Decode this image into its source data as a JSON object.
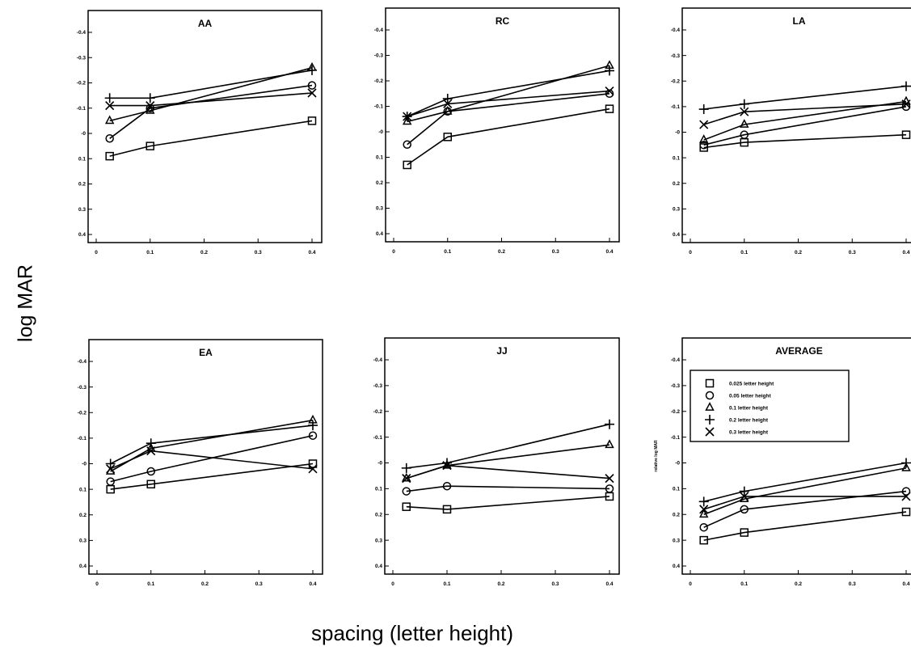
{
  "figure": {
    "ylabel": "log MAR",
    "xlabel": "spacing (letter height)"
  },
  "legend_items": [
    {
      "label": "0.025 letter height",
      "marker": "square"
    },
    {
      "label": "0.05 letter height",
      "marker": "circle"
    },
    {
      "label": "0.1 letter height",
      "marker": "triangle"
    },
    {
      "label": "0.2 letter height",
      "marker": "plus"
    },
    {
      "label": "0.3 letter height",
      "marker": "cross"
    }
  ],
  "chart_data": [
    {
      "type": "line",
      "title": "AA",
      "xlim": [
        0,
        0.4
      ],
      "ylim": [
        0.4,
        -0.4
      ],
      "y_axis_inverted": true,
      "xticks": [
        "0",
        "0.1",
        "0.2",
        "0.3",
        "0.4"
      ],
      "yticks": [
        "-0.4",
        "-0.3",
        "-0.2",
        "-0.1",
        "-0",
        "0.1",
        "0.2",
        "0.3",
        "0.4"
      ],
      "x": [
        0.025,
        0.1,
        0.4
      ],
      "series": [
        {
          "marker": "square",
          "values": [
            0.09,
            0.05,
            -0.05
          ]
        },
        {
          "marker": "circle",
          "values": [
            0.02,
            -0.1,
            -0.19
          ]
        },
        {
          "marker": "triangle",
          "values": [
            -0.05,
            -0.09,
            -0.26
          ]
        },
        {
          "marker": "plus",
          "values": [
            -0.14,
            -0.14,
            -0.25
          ]
        },
        {
          "marker": "cross",
          "values": [
            -0.11,
            -0.11,
            -0.16
          ]
        }
      ]
    },
    {
      "type": "line",
      "title": "RC",
      "xlim": [
        0,
        0.4
      ],
      "ylim": [
        0.4,
        -0.4
      ],
      "y_axis_inverted": true,
      "xticks": [
        "0",
        "0.1",
        "0.2",
        "0.3",
        "0.4"
      ],
      "yticks": [
        "-0.4",
        "-0.3",
        "-0.2",
        "-0.1",
        "-0",
        "0.1",
        "0.2",
        "0.3",
        "0.4"
      ],
      "x": [
        0.025,
        0.1,
        0.4
      ],
      "series": [
        {
          "marker": "square",
          "values": [
            0.13,
            0.02,
            -0.09
          ]
        },
        {
          "marker": "circle",
          "values": [
            0.05,
            -0.08,
            -0.15
          ]
        },
        {
          "marker": "triangle",
          "values": [
            -0.04,
            -0.08,
            -0.26
          ]
        },
        {
          "marker": "plus",
          "values": [
            -0.06,
            -0.13,
            -0.24
          ]
        },
        {
          "marker": "cross",
          "values": [
            -0.06,
            -0.11,
            -0.16
          ]
        }
      ]
    },
    {
      "type": "line",
      "title": "LA",
      "xlim": [
        0,
        0.4
      ],
      "ylim": [
        0.4,
        -0.4
      ],
      "y_axis_inverted": true,
      "xticks": [
        "0",
        "0.1",
        "0.2",
        "0.3",
        "0.4"
      ],
      "yticks": [
        "-0.4",
        "-0.3",
        "-0.2",
        "-0.1",
        "-0",
        "0.1",
        "0.2",
        "0.3",
        "0.4"
      ],
      "x": [
        0.025,
        0.1,
        0.4
      ],
      "series": [
        {
          "marker": "square",
          "values": [
            0.06,
            0.04,
            0.01
          ]
        },
        {
          "marker": "circle",
          "values": [
            0.05,
            0.01,
            -0.1
          ]
        },
        {
          "marker": "triangle",
          "values": [
            0.03,
            -0.03,
            -0.12
          ]
        },
        {
          "marker": "plus",
          "values": [
            -0.09,
            -0.11,
            -0.18
          ]
        },
        {
          "marker": "cross",
          "values": [
            -0.03,
            -0.08,
            -0.11
          ]
        }
      ]
    },
    {
      "type": "line",
      "title": "EA",
      "xlim": [
        0,
        0.4
      ],
      "ylim": [
        0.4,
        -0.4
      ],
      "y_axis_inverted": true,
      "xticks": [
        "0",
        "0.1",
        "0.2",
        "0.3",
        "0.4"
      ],
      "yticks": [
        "-0.4",
        "-0.3",
        "-0.2",
        "-0.1",
        "-0",
        "0.1",
        "0.2",
        "0.3",
        "0.4"
      ],
      "x": [
        0.025,
        0.1,
        0.4
      ],
      "series": [
        {
          "marker": "square",
          "values": [
            0.1,
            0.08,
            0.0
          ]
        },
        {
          "marker": "circle",
          "values": [
            0.07,
            0.03,
            -0.11
          ]
        },
        {
          "marker": "triangle",
          "values": [
            0.03,
            -0.06,
            -0.17
          ]
        },
        {
          "marker": "plus",
          "values": [
            0.0,
            -0.08,
            -0.15
          ]
        },
        {
          "marker": "cross",
          "values": [
            0.02,
            -0.05,
            0.02
          ]
        }
      ]
    },
    {
      "type": "line",
      "title": "JJ",
      "xlim": [
        0,
        0.4
      ],
      "ylim": [
        0.4,
        -0.4
      ],
      "y_axis_inverted": true,
      "xticks": [
        "0",
        "0.1",
        "0.2",
        "0.3",
        "0.4"
      ],
      "yticks": [
        "-0.4",
        "-0.3",
        "-0.2",
        "-0.1",
        "-0",
        "0.1",
        "0.2",
        "0.3",
        "0.4"
      ],
      "x": [
        0.025,
        0.1,
        0.4
      ],
      "series": [
        {
          "marker": "square",
          "values": [
            0.17,
            0.18,
            0.13
          ]
        },
        {
          "marker": "circle",
          "values": [
            0.11,
            0.09,
            0.1
          ]
        },
        {
          "marker": "triangle",
          "values": [
            0.06,
            0.01,
            -0.07
          ]
        },
        {
          "marker": "plus",
          "values": [
            0.02,
            0.0,
            -0.15
          ]
        },
        {
          "marker": "cross",
          "values": [
            0.06,
            0.01,
            0.06
          ]
        }
      ]
    },
    {
      "type": "line",
      "title": "AVERAGE",
      "ylabel": "relative log MAR",
      "xlim": [
        0,
        0.4
      ],
      "ylim": [
        0.4,
        -0.4
      ],
      "y_axis_inverted": true,
      "xticks": [
        "0",
        "0.1",
        "0.2",
        "0.3",
        "0.4"
      ],
      "yticks": [
        "-0.4",
        "-0.3",
        "-0.2",
        "-0.1",
        "-0",
        "0.1",
        "0.2",
        "0.3",
        "0.4"
      ],
      "legend": "top-left",
      "x": [
        0.025,
        0.1,
        0.4
      ],
      "series": [
        {
          "name": "0.025 letter height",
          "marker": "square",
          "values": [
            0.3,
            0.27,
            0.19
          ]
        },
        {
          "name": "0.05 letter height",
          "marker": "circle",
          "values": [
            0.25,
            0.18,
            0.11
          ]
        },
        {
          "name": "0.1 letter height",
          "marker": "triangle",
          "values": [
            0.2,
            0.14,
            0.02
          ]
        },
        {
          "name": "0.2 letter height",
          "marker": "plus",
          "values": [
            0.15,
            0.11,
            0.0
          ]
        },
        {
          "name": "0.3 letter height",
          "marker": "cross",
          "values": [
            0.18,
            0.13,
            0.13
          ]
        }
      ]
    }
  ]
}
